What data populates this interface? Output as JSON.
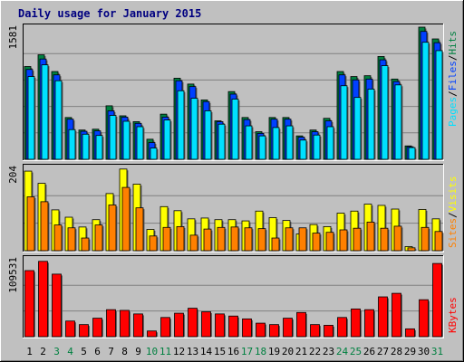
{
  "title": "Daily usage for January 2015",
  "colors": {
    "background": "#C0C0C0",
    "panel": "#C0C0C0",
    "gridline": "#808080",
    "title_text": "#000080",
    "hits": "#008040",
    "files": "#0040FF",
    "pages": "#00E0FF",
    "visits": "#FFFF00",
    "sites": "#FF8000",
    "kbytes": "#FF0000",
    "weekend_label": "#008040",
    "weekday_label": "#000000"
  },
  "chart_data": [
    {
      "type": "bar",
      "name": "hits-files-pages",
      "ymax": 1581,
      "ymax_label": "1581",
      "legend": [
        "Pages",
        "/",
        "Files",
        "/",
        "Hits"
      ],
      "categories": [
        "1",
        "2",
        "3",
        "4",
        "5",
        "6",
        "7",
        "8",
        "9",
        "10",
        "11",
        "12",
        "13",
        "14",
        "15",
        "16",
        "17",
        "18",
        "19",
        "20",
        "21",
        "22",
        "23",
        "24",
        "25",
        "26",
        "27",
        "28",
        "29",
        "30",
        "31"
      ],
      "weekend": [
        false,
        false,
        true,
        true,
        false,
        false,
        false,
        false,
        false,
        true,
        true,
        false,
        false,
        false,
        false,
        false,
        true,
        true,
        false,
        false,
        false,
        false,
        false,
        true,
        true,
        false,
        false,
        false,
        false,
        false,
        true
      ],
      "series": [
        {
          "name": "Hits",
          "values": [
            1110,
            1250,
            1050,
            500,
            350,
            360,
            640,
            520,
            450,
            240,
            540,
            970,
            900,
            710,
            460,
            810,
            500,
            330,
            500,
            500,
            280,
            350,
            490,
            1050,
            990,
            1000,
            1230,
            960,
            160,
            1581,
            1440
          ]
        },
        {
          "name": "Files",
          "values": [
            1075,
            1200,
            1010,
            480,
            335,
            340,
            580,
            505,
            430,
            200,
            505,
            940,
            870,
            690,
            450,
            780,
            475,
            310,
            480,
            480,
            265,
            330,
            460,
            1010,
            950,
            960,
            1190,
            930,
            150,
            1530,
            1395
          ]
        },
        {
          "name": "Pages",
          "values": [
            990,
            1130,
            940,
            355,
            300,
            285,
            525,
            455,
            390,
            135,
            470,
            820,
            730,
            580,
            420,
            720,
            400,
            280,
            380,
            400,
            230,
            290,
            390,
            880,
            740,
            840,
            1120,
            890,
            140,
            1400,
            1300
          ]
        }
      ]
    },
    {
      "type": "bar",
      "name": "visits-sites",
      "ymax": 204,
      "ymax_label": "204",
      "legend": [
        "Sites",
        "/",
        "Visits"
      ],
      "categories": [
        "1",
        "2",
        "3",
        "4",
        "5",
        "6",
        "7",
        "8",
        "9",
        "10",
        "11",
        "12",
        "13",
        "14",
        "15",
        "16",
        "17",
        "18",
        "19",
        "20",
        "21",
        "22",
        "23",
        "24",
        "25",
        "26",
        "27",
        "28",
        "29",
        "30",
        "31"
      ],
      "series": [
        {
          "name": "Visits",
          "values": [
            195,
            165,
            100,
            82,
            58,
            76,
            140,
            200,
            163,
            52,
            108,
            98,
            78,
            80,
            76,
            76,
            73,
            97,
            81,
            74,
            41,
            64,
            59,
            92,
            97,
            114,
            111,
            102,
            10,
            101,
            78
          ]
        },
        {
          "name": "Sites",
          "values": [
            132,
            120,
            63,
            56,
            31,
            63,
            112,
            155,
            105,
            36,
            57,
            59,
            38,
            53,
            57,
            58,
            56,
            54,
            31,
            56,
            56,
            43,
            45,
            51,
            55,
            70,
            55,
            60,
            7,
            57,
            47
          ]
        }
      ]
    },
    {
      "type": "bar",
      "name": "kbytes",
      "ymax": 109531,
      "ymax_label": "109531",
      "legend": [
        "KBytes"
      ],
      "categories": [
        "1",
        "2",
        "3",
        "4",
        "5",
        "6",
        "7",
        "8",
        "9",
        "10",
        "11",
        "12",
        "13",
        "14",
        "15",
        "16",
        "17",
        "18",
        "19",
        "20",
        "21",
        "22",
        "23",
        "24",
        "25",
        "26",
        "27",
        "28",
        "29",
        "30",
        "31"
      ],
      "series": [
        {
          "name": "KBytes",
          "values": [
            93000,
            106000,
            88000,
            22000,
            17000,
            26000,
            38000,
            37000,
            32000,
            8000,
            27000,
            33000,
            40000,
            35000,
            32000,
            29000,
            25000,
            19000,
            17000,
            26000,
            34000,
            17000,
            16000,
            27000,
            39000,
            38000,
            56000,
            61000,
            11000,
            52000,
            103000
          ]
        }
      ]
    }
  ]
}
